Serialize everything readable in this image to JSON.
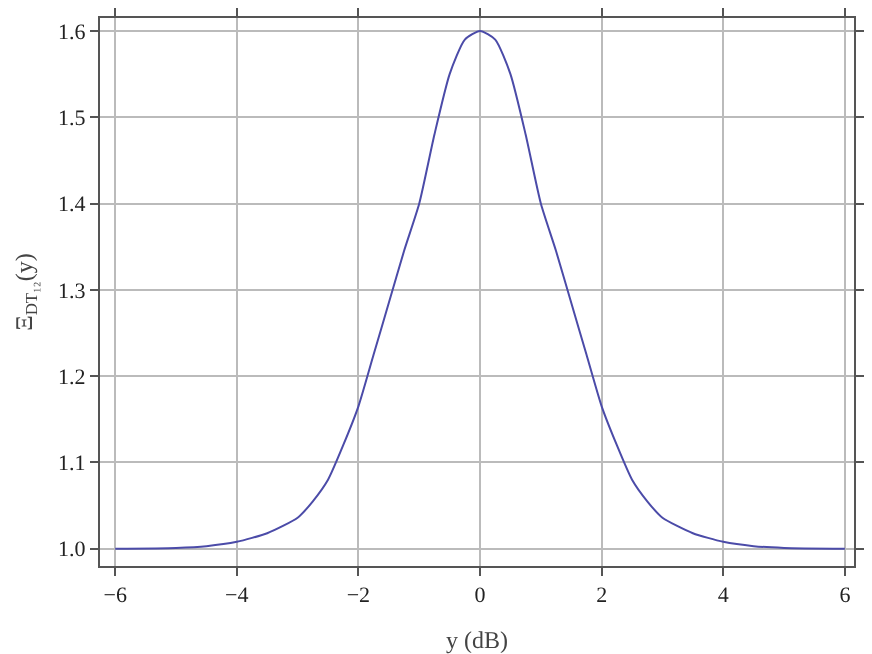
{
  "chart_data": {
    "type": "line",
    "xlabel": "y (dB)",
    "ylabel": "Ξ$_{DT₁₂}$(y)",
    "x": [
      -6,
      -5,
      -4.5,
      -4,
      -3.5,
      -3,
      -2.75,
      -2.5,
      -2.25,
      -2,
      -1.75,
      -1.5,
      -1.25,
      -1,
      -0.75,
      -0.5,
      -0.25,
      0,
      0.25,
      0.5,
      0.75,
      1,
      1.25,
      1.5,
      1.75,
      2,
      2.25,
      2.5,
      2.75,
      3,
      3.5,
      4,
      4.5,
      5,
      6
    ],
    "series": [
      {
        "color": "#4b4ba8",
        "values": [
          1.0,
          1.001,
          1.003,
          1.008,
          1.018,
          1.036,
          1.055,
          1.08,
          1.12,
          1.165,
          1.225,
          1.285,
          1.345,
          1.4,
          1.48,
          1.55,
          1.59,
          1.6,
          1.59,
          1.55,
          1.48,
          1.4,
          1.345,
          1.285,
          1.225,
          1.165,
          1.12,
          1.08,
          1.055,
          1.036,
          1.018,
          1.008,
          1.003,
          1.001,
          1.0
        ]
      }
    ],
    "xlim": [
      -6.25,
      6.15
    ],
    "ylim": [
      0.98,
      1.615
    ],
    "xticks": [
      {
        "value": -6,
        "label": "−6"
      },
      {
        "value": -4,
        "label": "−4"
      },
      {
        "value": -2,
        "label": "−2"
      },
      0,
      2,
      4,
      6
    ],
    "yticks": [
      {
        "value": 1,
        "label": "1.0"
      },
      1.1,
      1.2,
      1.3,
      1.4,
      1.5,
      1.6
    ],
    "grid": true,
    "marker": "none",
    "line_style": "solid"
  }
}
